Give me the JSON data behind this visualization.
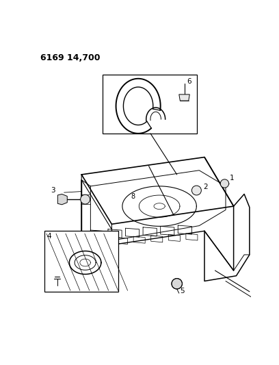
{
  "title": "6169 14,700",
  "bg": "#ffffff",
  "lc": "#000000",
  "fig_w": 4.08,
  "fig_h": 5.33,
  "dpi": 100
}
